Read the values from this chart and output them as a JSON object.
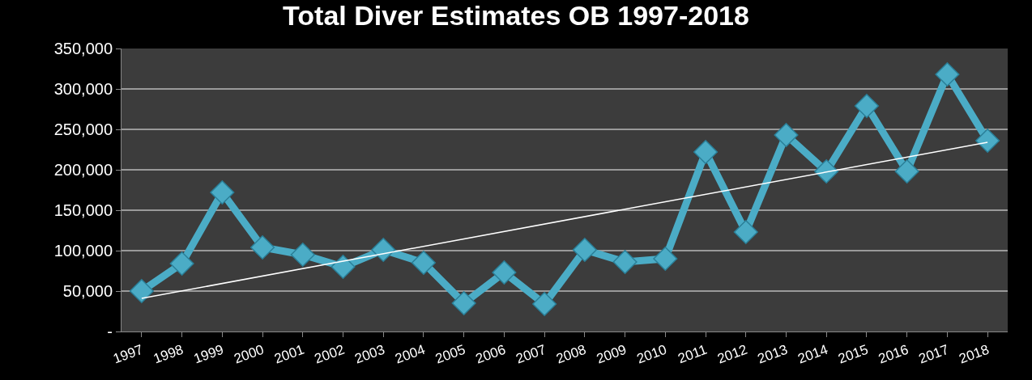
{
  "chart_data": {
    "type": "line",
    "title": "Total Diver Estimates OB 1997-2018",
    "categories": [
      "1997",
      "1998",
      "1999",
      "2000",
      "2001",
      "2002",
      "2003",
      "2004",
      "2005",
      "2006",
      "2007",
      "2008",
      "2009",
      "2010",
      "2011",
      "2012",
      "2013",
      "2014",
      "2015",
      "2016",
      "2017",
      "2018"
    ],
    "series": [
      {
        "color": "#4bacc6",
        "marker": "diamond",
        "values": [
          50000,
          84000,
          172000,
          104000,
          95000,
          80000,
          101000,
          85000,
          35000,
          73000,
          34000,
          101000,
          86000,
          90000,
          222000,
          123000,
          243000,
          198000,
          279000,
          198000,
          318000,
          236000
        ]
      },
      {
        "type": "line",
        "color": "#ffffff",
        "marker": "none",
        "values": [
          41000,
          null,
          null,
          null,
          null,
          null,
          null,
          null,
          null,
          null,
          null,
          null,
          null,
          null,
          null,
          null,
          null,
          null,
          null,
          null,
          null,
          234000
        ]
      }
    ],
    "ylim": [
      0,
      350000
    ],
    "yticks": [
      {
        "value": 0,
        "label": "-"
      },
      {
        "value": 50000,
        "label": "50,000"
      },
      {
        "value": 100000,
        "label": "100,000"
      },
      {
        "value": 150000,
        "label": "150,000"
      },
      {
        "value": 200000,
        "label": "200,000"
      },
      {
        "value": 250000,
        "label": "250,000"
      },
      {
        "value": 300000,
        "label": "300,000"
      },
      {
        "value": 350000,
        "label": "350,000"
      }
    ],
    "grid": "y"
  }
}
